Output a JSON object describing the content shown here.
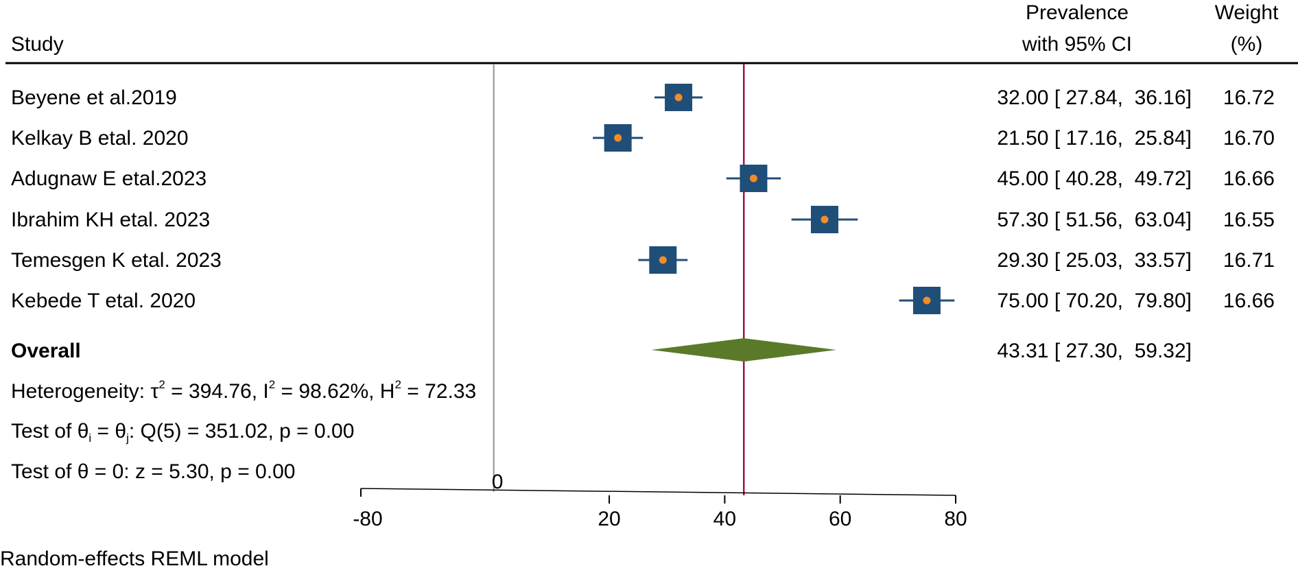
{
  "chart_data": {
    "type": "forest",
    "headers": {
      "study": "Study",
      "prevalence_line1": "Prevalence",
      "prevalence_line2": "with 95% CI",
      "weight_line1": "Weight",
      "weight_line2": "(%)"
    },
    "studies": [
      {
        "label": "Beyene et al.2019",
        "estimate": 32.0,
        "lower": 27.84,
        "upper": 36.16,
        "weight": 16.72,
        "ci_text": "32.00 [ 27.84,  36.16]",
        "weight_text": "16.72"
      },
      {
        "label": "Kelkay B etal. 2020",
        "estimate": 21.5,
        "lower": 17.16,
        "upper": 25.84,
        "weight": 16.7,
        "ci_text": "21.50 [ 17.16,  25.84]",
        "weight_text": "16.70"
      },
      {
        "label": "Adugnaw E etal.2023",
        "estimate": 45.0,
        "lower": 40.28,
        "upper": 49.72,
        "weight": 16.66,
        "ci_text": "45.00 [ 40.28,  49.72]",
        "weight_text": "16.66"
      },
      {
        "label": "Ibrahim KH etal. 2023",
        "estimate": 57.3,
        "lower": 51.56,
        "upper": 63.04,
        "weight": 16.55,
        "ci_text": "57.30 [ 51.56,  63.04]",
        "weight_text": "16.55"
      },
      {
        "label": "Temesgen K etal. 2023",
        "estimate": 29.3,
        "lower": 25.03,
        "upper": 33.57,
        "weight": 16.71,
        "ci_text": "29.30 [ 25.03,  33.57]",
        "weight_text": "16.71"
      },
      {
        "label": "Kebede T etal. 2020",
        "estimate": 75.0,
        "lower": 70.2,
        "upper": 79.8,
        "weight": 16.66,
        "ci_text": "75.00 [ 70.20,  79.80]",
        "weight_text": "16.66"
      }
    ],
    "overall": {
      "label": "Overall",
      "estimate": 43.31,
      "lower": 27.3,
      "upper": 59.32,
      "ci_text": "43.31 [ 27.30,  59.32]"
    },
    "heterogeneity": {
      "prefix": "Heterogeneity: τ",
      "tau_sup": "2",
      "mid1": " = 394.76, I",
      "i_sup": "2",
      "mid2": " = 98.62%, H",
      "h_sup": "2",
      "end": " = 72.33"
    },
    "test_equal": {
      "p1": "Test of θ",
      "s1": "i",
      "p2": " = θ",
      "s2": "j",
      "p3": ": Q(5) = 351.02, p = 0.00"
    },
    "test_zero": "Test of θ = 0: z = 5.30, p = 0.00",
    "null_line_label": "0",
    "x_ticks": [
      {
        "value": -80,
        "label": "-80"
      },
      {
        "value": 20,
        "label": "20"
      },
      {
        "value": 40,
        "label": "40"
      },
      {
        "value": 60,
        "label": "60"
      },
      {
        "value": 80,
        "label": "80"
      }
    ],
    "xlim": [
      -80,
      80
    ],
    "model_note": "Random-effects REML model",
    "colors": {
      "marker_box": "#1f4e79",
      "marker_point": "#f28c28",
      "ci_line": "#1f4e79",
      "diamond": "#5a7a2a",
      "overall_line": "#a0134a",
      "null_line": "#909090",
      "axis": "#000000"
    }
  }
}
